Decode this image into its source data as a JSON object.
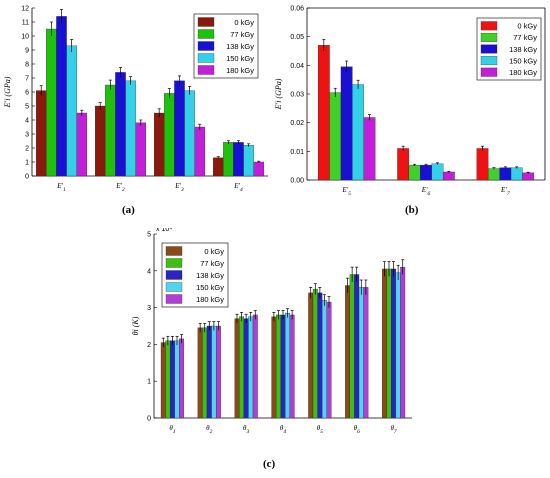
{
  "colors": {
    "bar_series_ab": [
      "#8b1a0e",
      "#1fc10c",
      "#1a10d4",
      "#34d0e8",
      "#c21fd8"
    ],
    "bar_series_c": [
      "#8b4a1a",
      "#3fbf12",
      "#2a24c4",
      "#4fd6ef",
      "#b23cd6"
    ],
    "bar_series_b": [
      "#ee1212",
      "#3fd12a",
      "#1a10d4",
      "#34d0e8",
      "#c21fd8"
    ]
  },
  "chart_data": [
    {
      "type": "bar",
      "panel_label": "(a)",
      "ylabel": "E′i (GPa)",
      "ylim": [
        0,
        12
      ],
      "yticks": [
        0,
        1,
        2,
        3,
        4,
        5,
        6,
        7,
        8,
        9,
        10,
        11,
        12
      ],
      "categories": [
        "E′1",
        "E′2",
        "E′3",
        "E′4"
      ],
      "series": [
        {
          "name": "0 kGy",
          "values": [
            6.1,
            5.0,
            4.5,
            1.3
          ],
          "errors": [
            0.35,
            0.25,
            0.3,
            0.08
          ]
        },
        {
          "name": "77 kGy",
          "values": [
            10.5,
            6.5,
            5.9,
            2.4
          ],
          "errors": [
            0.5,
            0.35,
            0.35,
            0.12
          ]
        },
        {
          "name": "138 kGy",
          "values": [
            11.4,
            7.4,
            6.8,
            2.4
          ],
          "errors": [
            0.5,
            0.35,
            0.35,
            0.12
          ]
        },
        {
          "name": "150 kGy",
          "values": [
            9.3,
            6.8,
            6.1,
            2.2
          ],
          "errors": [
            0.45,
            0.3,
            0.3,
            0.1
          ]
        },
        {
          "name": "180 kGy",
          "values": [
            4.5,
            3.8,
            3.5,
            1.0
          ],
          "errors": [
            0.2,
            0.2,
            0.2,
            0.06
          ]
        }
      ],
      "legend": "top-right",
      "grid": false
    },
    {
      "type": "bar",
      "panel_label": "(b)",
      "ylabel": "E′i (GPa)",
      "ylim": [
        0,
        0.06
      ],
      "yticks": [
        "0.00",
        "0.01",
        "0.02",
        "0.03",
        "0.04",
        "0.05",
        "0.06"
      ],
      "categories": [
        "E′5",
        "E′6",
        "E′7"
      ],
      "series": [
        {
          "name": "0 kGy",
          "values": [
            0.047,
            0.011,
            0.011
          ],
          "errors": [
            0.002,
            0.0008,
            0.0008
          ]
        },
        {
          "name": "77 kGy",
          "values": [
            0.0305,
            0.0052,
            0.004
          ],
          "errors": [
            0.0015,
            0.0003,
            0.0003
          ]
        },
        {
          "name": "138 kGy",
          "values": [
            0.0395,
            0.0052,
            0.0043
          ],
          "errors": [
            0.002,
            0.0003,
            0.0003
          ]
        },
        {
          "name": "150 kGy",
          "values": [
            0.0333,
            0.0057,
            0.0043
          ],
          "errors": [
            0.0015,
            0.0003,
            0.0003
          ]
        },
        {
          "name": "180 kGy",
          "values": [
            0.0218,
            0.0028,
            0.0025
          ],
          "errors": [
            0.001,
            0.0002,
            0.0002
          ]
        }
      ],
      "legend": "top-right",
      "grid": false
    },
    {
      "type": "bar",
      "panel_label": "(c)",
      "ylabel": "θi (K)",
      "ylim": [
        0,
        5
      ],
      "yticks": [
        0,
        1,
        2,
        3,
        4,
        5
      ],
      "yexponent": "x 10⁴",
      "categories": [
        "θ1",
        "θ2",
        "θ3",
        "θ4",
        "θ5",
        "θ6",
        "θ7"
      ],
      "series": [
        {
          "name": "0 kGy",
          "values": [
            2.05,
            2.45,
            2.7,
            2.75,
            3.4,
            3.6,
            4.05
          ],
          "errors": [
            0.12,
            0.12,
            0.12,
            0.12,
            0.15,
            0.2,
            0.2
          ]
        },
        {
          "name": "77 kGy",
          "values": [
            2.1,
            2.45,
            2.75,
            2.8,
            3.5,
            3.9,
            4.05
          ],
          "errors": [
            0.12,
            0.12,
            0.12,
            0.12,
            0.15,
            0.2,
            0.2
          ]
        },
        {
          "name": "138 kGy",
          "values": [
            2.1,
            2.5,
            2.7,
            2.8,
            3.4,
            3.9,
            4.05
          ],
          "errors": [
            0.12,
            0.12,
            0.12,
            0.12,
            0.15,
            0.2,
            0.2
          ]
        },
        {
          "name": "150 kGy",
          "values": [
            2.1,
            2.5,
            2.75,
            2.85,
            3.2,
            3.55,
            3.95
          ],
          "errors": [
            0.12,
            0.12,
            0.12,
            0.12,
            0.15,
            0.2,
            0.2
          ]
        },
        {
          "name": "180 kGy",
          "values": [
            2.15,
            2.5,
            2.8,
            2.8,
            3.15,
            3.55,
            4.1
          ],
          "errors": [
            0.12,
            0.12,
            0.12,
            0.12,
            0.15,
            0.2,
            0.2
          ]
        }
      ],
      "legend": "top-left",
      "grid": false
    }
  ]
}
